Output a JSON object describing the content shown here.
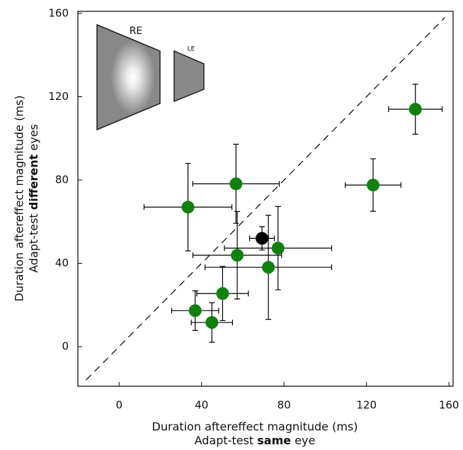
{
  "chart_data": {
    "type": "scatter",
    "xlabel": [
      "Duration aftereffect magnitude (ms)",
      [
        "Adapt-test ",
        "same",
        " eye"
      ]
    ],
    "ylabel": [
      "Duration aftereffect magnitude (ms)",
      [
        "Adapt-test ",
        "different",
        " eyes"
      ]
    ],
    "annotations": [
      "RE",
      "LE"
    ],
    "xlim": [
      -20,
      162
    ],
    "ylim": [
      -19,
      161
    ],
    "xticks": [
      0,
      40,
      80,
      120,
      160
    ],
    "yticks": [
      0,
      40,
      80,
      120,
      160
    ],
    "series": [
      {
        "color": "#118011",
        "x": [
          143.7,
          123.2,
          56.7,
          33.4,
          77.1,
          57.3,
          72.4,
          50.2,
          36.9,
          45
        ],
        "y": [
          114,
          77.6,
          78.2,
          67,
          47.3,
          43.9,
          38.1,
          25.5,
          17.3,
          11.6
        ],
        "xerr": [
          13,
          13.5,
          21,
          21.3,
          26,
          21.5,
          30.7,
          12.5,
          11.4,
          10
        ],
        "yerr": [
          12,
          12.6,
          19,
          21,
          20,
          21,
          25,
          13,
          9.5,
          9.5
        ]
      },
      {
        "color": "#000000",
        "x": [
          69.3
        ],
        "y": [
          52
        ],
        "xerr": [
          6
        ],
        "yerr": [
          5.6
        ]
      }
    ]
  }
}
